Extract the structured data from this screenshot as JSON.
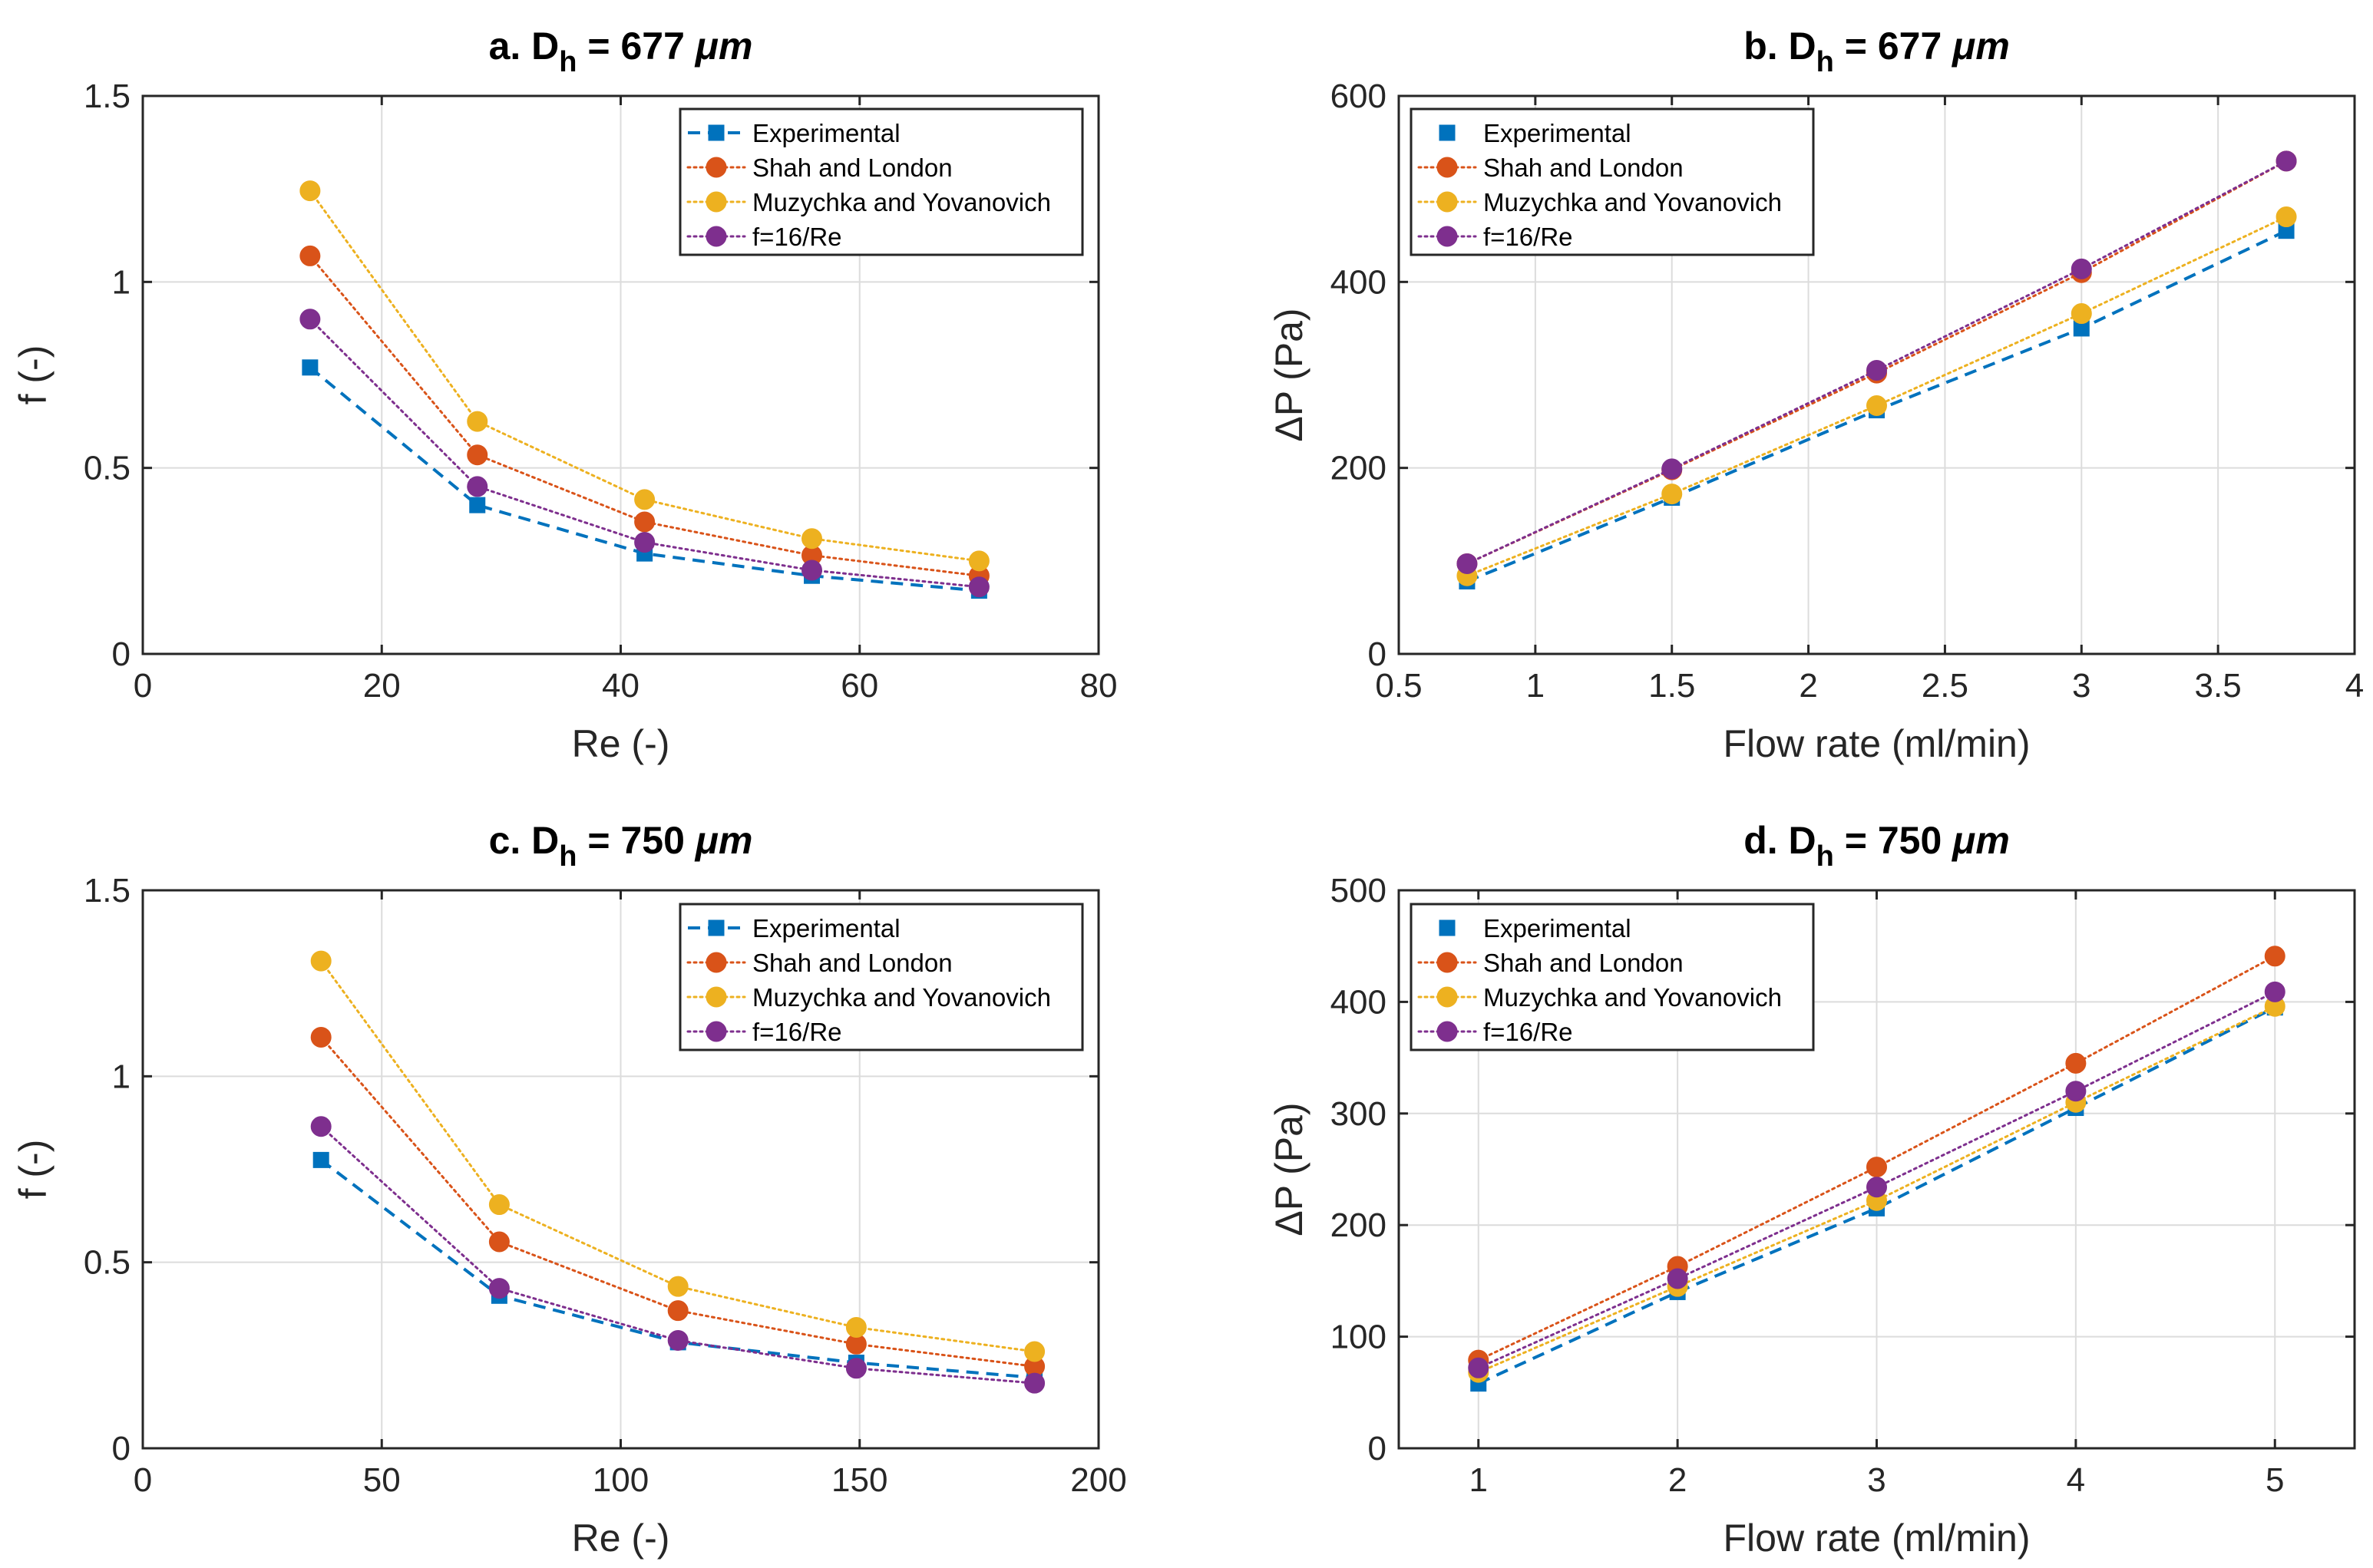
{
  "chart_data": [
    {
      "panel": "a",
      "type": "line",
      "title": {
        "prefix": "a. D",
        "subscript": "h",
        "suffix": " = 677 ",
        "unit": "μm"
      },
      "xlabel": "Re (-)",
      "ylabel": "f (-)",
      "xlim": [
        0,
        80
      ],
      "ylim": [
        0,
        1.5
      ],
      "xticks": [
        0,
        20,
        40,
        60,
        80
      ],
      "xtick_labels": [
        "0",
        "20",
        "40",
        "60",
        "80"
      ],
      "yticks": [
        0,
        0.5,
        1,
        1.5
      ],
      "ytick_labels": [
        "0",
        "0.5",
        "1",
        "1.5"
      ],
      "grid": true,
      "legend_position": "top-right",
      "x": [
        14,
        28,
        42,
        56,
        70
      ],
      "series": [
        {
          "name": "Experimental",
          "color": "#0072BD",
          "style": "dashed",
          "marker": "square",
          "show_line_in_legend": true,
          "values": [
            0.77,
            0.4,
            0.27,
            0.21,
            0.17
          ]
        },
        {
          "name": "Shah and London",
          "color": "#D95319",
          "style": "dotted",
          "marker": "circle",
          "show_line_in_legend": true,
          "values": [
            1.07,
            0.535,
            0.355,
            0.265,
            0.21
          ]
        },
        {
          "name": "Muzychka and Yovanovich",
          "color": "#EDB120",
          "style": "dotted",
          "marker": "circle",
          "show_line_in_legend": true,
          "values": [
            1.245,
            0.625,
            0.415,
            0.31,
            0.25
          ]
        },
        {
          "name": "f=16/Re",
          "color": "#7E2F8E",
          "style": "dotted",
          "marker": "circle",
          "show_line_in_legend": true,
          "values": [
            0.9,
            0.45,
            0.3,
            0.225,
            0.18
          ]
        }
      ]
    },
    {
      "panel": "b",
      "type": "line",
      "title": {
        "prefix": "b. D",
        "subscript": "h",
        "suffix": " = 677 ",
        "unit": "μm"
      },
      "xlabel": "Flow rate (ml/min)",
      "ylabel": "ΔP (Pa)",
      "xlim": [
        0.5,
        4
      ],
      "ylim": [
        0,
        600
      ],
      "xticks": [
        0.5,
        1,
        1.5,
        2,
        2.5,
        3,
        3.5,
        4
      ],
      "xtick_labels": [
        "0.5",
        "1",
        "1.5",
        "2",
        "2.5",
        "3",
        "3.5",
        "4"
      ],
      "yticks": [
        0,
        200,
        400,
        600
      ],
      "ytick_labels": [
        "0",
        "200",
        "400",
        "600"
      ],
      "grid": true,
      "legend_position": "top-left",
      "x": [
        0.75,
        1.5,
        2.25,
        3,
        3.75
      ],
      "series": [
        {
          "name": "Experimental",
          "color": "#0072BD",
          "style": "dashed",
          "marker": "square",
          "show_line_in_legend": false,
          "values": [
            78,
            168,
            262,
            350,
            455
          ]
        },
        {
          "name": "Shah and London",
          "color": "#D95319",
          "style": "dotted",
          "marker": "circle",
          "show_line_in_legend": true,
          "values": [
            97,
            198,
            302,
            410,
            530
          ]
        },
        {
          "name": "Muzychka and Yovanovich",
          "color": "#EDB120",
          "style": "dotted",
          "marker": "circle",
          "show_line_in_legend": true,
          "values": [
            84,
            172,
            267,
            366,
            470
          ]
        },
        {
          "name": "f=16/Re",
          "color": "#7E2F8E",
          "style": "dotted",
          "marker": "circle",
          "show_line_in_legend": true,
          "values": [
            97,
            199,
            305,
            414,
            530
          ]
        }
      ]
    },
    {
      "panel": "c",
      "type": "line",
      "title": {
        "prefix": "c. D",
        "subscript": "h",
        "suffix": " = 750 ",
        "unit": "μm"
      },
      "xlabel": "Re (-)",
      "ylabel": "f (-)",
      "xlim": [
        0,
        200
      ],
      "ylim": [
        0,
        1.5
      ],
      "xticks": [
        0,
        50,
        100,
        150,
        200
      ],
      "xtick_labels": [
        "0",
        "50",
        "100",
        "150",
        "200"
      ],
      "yticks": [
        0,
        0.5,
        1,
        1.5
      ],
      "ytick_labels": [
        "0",
        "0.5",
        "1",
        "1.5"
      ],
      "grid": true,
      "legend_position": "top-right",
      "x": [
        37.3,
        74.6,
        112,
        149.3,
        186.6
      ],
      "series": [
        {
          "name": "Experimental",
          "color": "#0072BD",
          "style": "dashed",
          "marker": "square",
          "show_line_in_legend": true,
          "values": [
            0.775,
            0.41,
            0.285,
            0.23,
            0.19
          ]
        },
        {
          "name": "Shah and London",
          "color": "#D95319",
          "style": "dotted",
          "marker": "circle",
          "show_line_in_legend": true,
          "values": [
            1.105,
            0.555,
            0.37,
            0.28,
            0.22
          ]
        },
        {
          "name": "Muzychka and Yovanovich",
          "color": "#EDB120",
          "style": "dotted",
          "marker": "circle",
          "show_line_in_legend": true,
          "values": [
            1.31,
            0.655,
            0.435,
            0.325,
            0.26
          ]
        },
        {
          "name": "f=16/Re",
          "color": "#7E2F8E",
          "style": "dotted",
          "marker": "circle",
          "show_line_in_legend": true,
          "values": [
            0.865,
            0.43,
            0.29,
            0.215,
            0.175
          ]
        }
      ]
    },
    {
      "panel": "d",
      "type": "line",
      "title": {
        "prefix": "d. D",
        "subscript": "h",
        "suffix": " = 750 ",
        "unit": "μm"
      },
      "xlabel": "Flow rate (ml/min)",
      "ylabel": "ΔP (Pa)",
      "xlim": [
        0.6,
        5.4
      ],
      "ylim": [
        0,
        500
      ],
      "xticks": [
        1,
        2,
        3,
        4,
        5
      ],
      "xtick_labels": [
        "1",
        "2",
        "3",
        "4",
        "5"
      ],
      "yticks": [
        0,
        100,
        200,
        300,
        400,
        500
      ],
      "ytick_labels": [
        "0",
        "100",
        "200",
        "300",
        "400",
        "500"
      ],
      "grid": true,
      "legend_position": "top-left",
      "x": [
        1,
        2,
        3,
        4,
        5
      ],
      "series": [
        {
          "name": "Experimental",
          "color": "#0072BD",
          "style": "dashed",
          "marker": "square",
          "show_line_in_legend": false,
          "values": [
            58,
            140,
            215,
            305,
            395
          ]
        },
        {
          "name": "Shah and London",
          "color": "#D95319",
          "style": "dotted",
          "marker": "circle",
          "show_line_in_legend": true,
          "values": [
            79,
            163,
            252,
            345,
            441
          ]
        },
        {
          "name": "Muzychka and Yovanovich",
          "color": "#EDB120",
          "style": "dotted",
          "marker": "circle",
          "show_line_in_legend": true,
          "values": [
            68,
            145,
            222,
            310,
            396
          ]
        },
        {
          "name": "f=16/Re",
          "color": "#7E2F8E",
          "style": "dotted",
          "marker": "circle",
          "show_line_in_legend": true,
          "values": [
            72,
            152,
            234,
            320,
            409
          ]
        }
      ]
    }
  ]
}
